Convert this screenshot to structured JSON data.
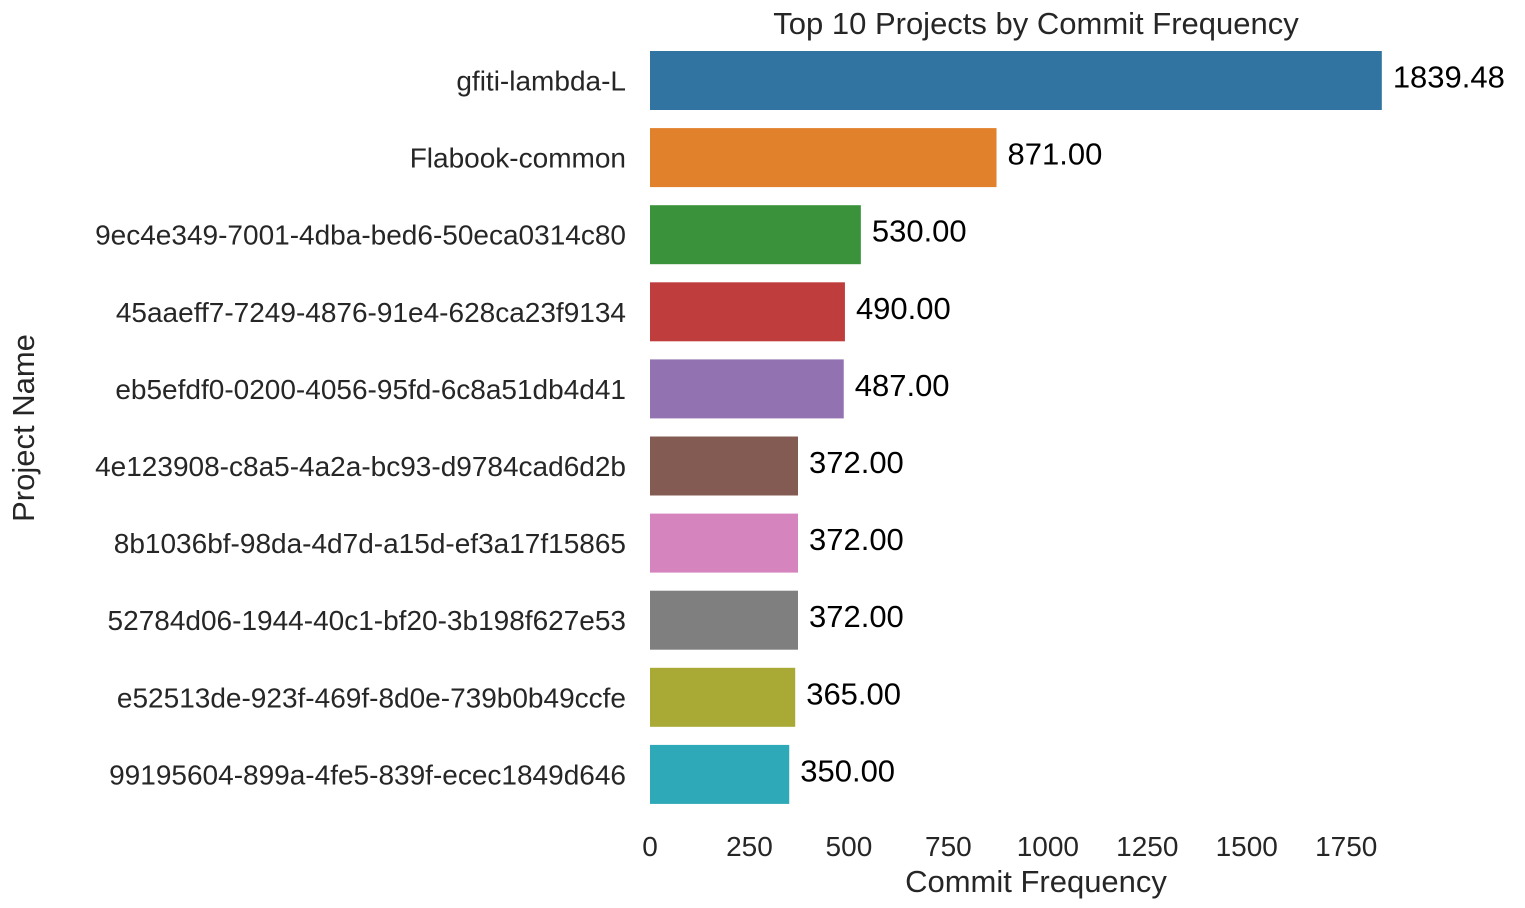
{
  "chart_data": {
    "type": "bar",
    "orientation": "horizontal",
    "title": "Top 10 Projects by Commit Frequency",
    "xlabel": "Commit Frequency",
    "ylabel": "Project Name",
    "xlim": [
      0,
      1850
    ],
    "xticks": [
      0,
      250,
      500,
      750,
      1000,
      1250,
      1500,
      1750
    ],
    "grid": false,
    "categories": [
      "gfiti-lambda-L",
      "Flabook-common",
      "9ec4e349-7001-4dba-bed6-50eca0314c80",
      "45aaeff7-7249-4876-91e4-628ca23f9134",
      "eb5efdf0-0200-4056-95fd-6c8a51db4d41",
      "4e123908-c8a5-4a2a-bc93-d9784cad6d2b",
      "8b1036bf-98da-4d7d-a15d-ef3a17f15865",
      "52784d06-1944-40c1-bf20-3b198f627e53",
      "e52513de-923f-469f-8d0e-739b0b49ccfe",
      "99195604-899a-4fe5-839f-ecec1849d646"
    ],
    "values": [
      1839.48,
      871.0,
      530.0,
      490.0,
      487.0,
      372.0,
      372.0,
      372.0,
      365.0,
      350.0
    ],
    "value_labels": [
      "1839.48",
      "871.00",
      "530.00",
      "490.00",
      "487.00",
      "372.00",
      "372.00",
      "372.00",
      "365.00",
      "350.00"
    ],
    "colors": [
      "#3274a1",
      "#e1812c",
      "#3a923a",
      "#c03d3e",
      "#9372b2",
      "#845b53",
      "#d684bd",
      "#7f7f7f",
      "#a9aa35",
      "#2ea9b8"
    ]
  }
}
